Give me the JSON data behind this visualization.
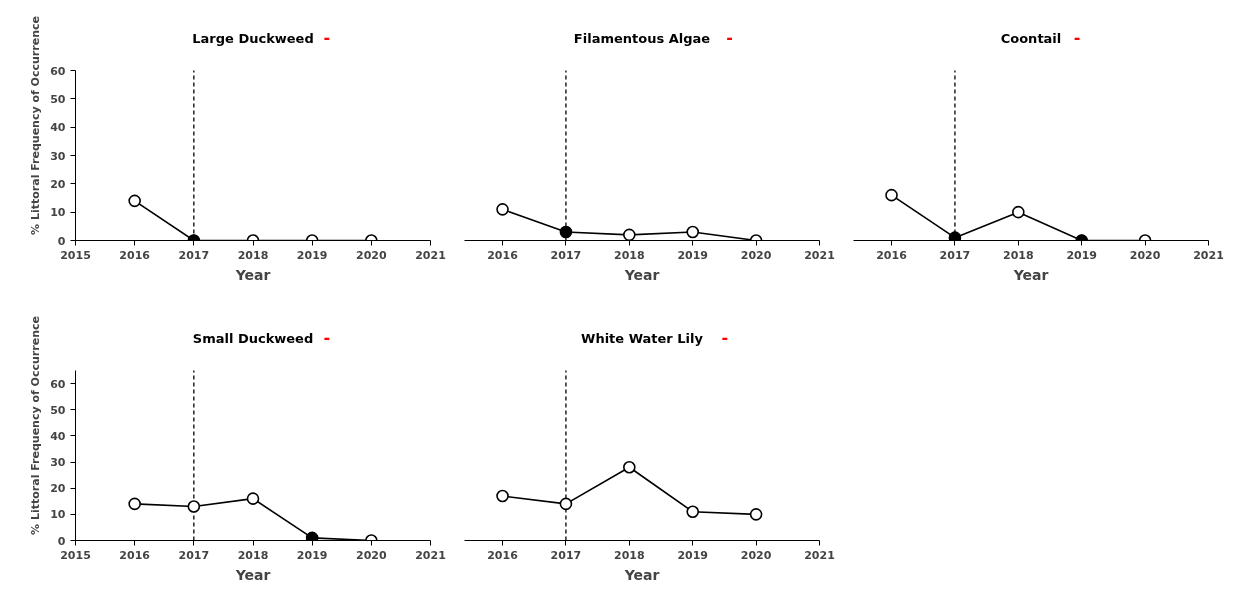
{
  "chart_data": [
    {
      "type": "line",
      "title": "Large Duckweed",
      "annotations": [
        "-"
      ],
      "xlabel": "Year",
      "ylabel": "% Littoral Frequency of Occurrence",
      "x": [
        2016,
        2017,
        2018,
        2019,
        2020
      ],
      "xlim": [
        2015,
        2021
      ],
      "xticks": [
        2015,
        2016,
        2017,
        2018,
        2019,
        2020,
        2021
      ],
      "ylim": [
        0,
        60
      ],
      "yticks": [
        0,
        10,
        20,
        30,
        40,
        50,
        60
      ],
      "marker": "circle",
      "grid": false,
      "series": [
        {
          "color": "#000000",
          "values": [
            14,
            0,
            0,
            0,
            0
          ]
        },
        {
          "type": "scatter",
          "color": "#000000",
          "values": [
            null,
            0,
            null,
            null,
            null
          ]
        }
      ],
      "ref_lines": [
        {
          "axis": "x",
          "value": 2017,
          "line_style": "dashed",
          "color": "#000000"
        }
      ]
    },
    {
      "type": "line",
      "title": "Filamentous Algae",
      "annotations": [
        "-"
      ],
      "xlabel": "Year",
      "x": [
        2016,
        2017,
        2018,
        2019,
        2020
      ],
      "xlim": [
        2015.4,
        2021
      ],
      "xticks": [
        2016,
        2017,
        2018,
        2019,
        2020,
        2021
      ],
      "ylim": [
        0,
        60
      ],
      "tick_labels": "x",
      "marker": "circle",
      "grid": false,
      "series": [
        {
          "color": "#000000",
          "values": [
            11,
            3,
            2,
            3,
            0
          ]
        },
        {
          "type": "scatter",
          "color": "#000000",
          "values": [
            null,
            3,
            null,
            null,
            null
          ]
        }
      ],
      "ref_lines": [
        {
          "axis": "x",
          "value": 2017,
          "line_style": "dashed",
          "color": "#000000"
        }
      ]
    },
    {
      "type": "line",
      "title": "Coontail",
      "annotations": [
        "-"
      ],
      "xlabel": "Year",
      "x": [
        2016,
        2017,
        2018,
        2019,
        2020
      ],
      "xlim": [
        2015.4,
        2021
      ],
      "xticks": [
        2016,
        2017,
        2018,
        2019,
        2020,
        2021
      ],
      "ylim": [
        0,
        60
      ],
      "tick_labels": "x",
      "marker": "circle",
      "grid": false,
      "series": [
        {
          "color": "#000000",
          "values": [
            16,
            1,
            10,
            0,
            0
          ]
        },
        {
          "type": "scatter",
          "color": "#000000",
          "values": [
            null,
            1,
            null,
            0,
            null
          ]
        }
      ],
      "ref_lines": [
        {
          "axis": "x",
          "value": 2017,
          "line_style": "dashed",
          "color": "#000000"
        }
      ]
    },
    {
      "type": "line",
      "title": "Small Duckweed",
      "annotations": [
        "-"
      ],
      "xlabel": "Year",
      "ylabel": "% Littoral Frequency of Occurrence",
      "x": [
        2016,
        2017,
        2018,
        2019,
        2020
      ],
      "xlim": [
        2015,
        2021
      ],
      "xticks": [
        2015,
        2016,
        2017,
        2018,
        2019,
        2020,
        2021
      ],
      "ylim": [
        0,
        65
      ],
      "yticks": [
        0,
        10,
        20,
        30,
        40,
        50,
        60
      ],
      "marker": "circle",
      "grid": false,
      "series": [
        {
          "color": "#000000",
          "values": [
            14,
            13,
            16,
            1,
            0
          ]
        },
        {
          "type": "scatter",
          "color": "#000000",
          "values": [
            null,
            null,
            null,
            1,
            null
          ]
        }
      ],
      "ref_lines": [
        {
          "axis": "x",
          "value": 2017,
          "line_style": "dashed",
          "color": "#000000"
        }
      ]
    },
    {
      "type": "line",
      "title": "White Water Lily",
      "annotations": [
        "-"
      ],
      "xlabel": "Year",
      "x": [
        2016,
        2017,
        2018,
        2019,
        2020
      ],
      "xlim": [
        2015.4,
        2021
      ],
      "xticks": [
        2016,
        2017,
        2018,
        2019,
        2020,
        2021
      ],
      "ylim": [
        0,
        65
      ],
      "tick_labels": "x",
      "marker": "circle",
      "grid": false,
      "series": [
        {
          "color": "#000000",
          "values": [
            17,
            14,
            28,
            11,
            10
          ]
        }
      ],
      "ref_lines": [
        {
          "axis": "x",
          "value": 2017,
          "line_style": "dashed",
          "color": "#000000"
        }
      ]
    }
  ]
}
